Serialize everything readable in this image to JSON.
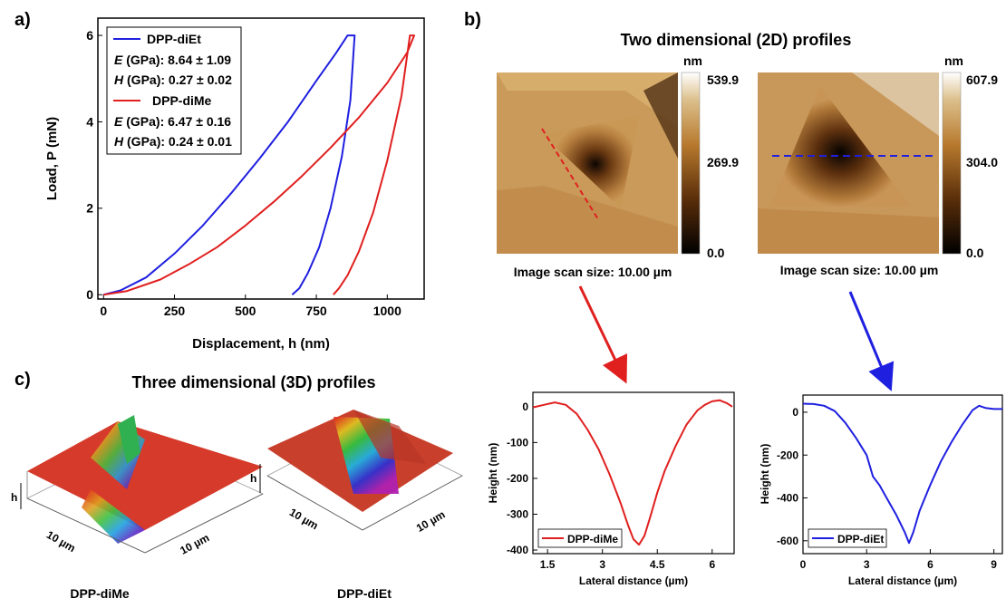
{
  "panels": {
    "a": {
      "letter": "a)"
    },
    "b": {
      "letter": "b)",
      "title": "Two dimensional (2D) profiles",
      "left_image": {
        "colorbar_unit": "nm",
        "colorbar_ticks": [
          "539.9",
          "269.9",
          "0.0"
        ],
        "scan_label": "Image scan size: 10.00 µm"
      },
      "right_image": {
        "colorbar_unit": "nm",
        "colorbar_ticks": [
          "607.9",
          "304.0",
          "0.0"
        ],
        "scan_label": "Image scan size: 10.00 µm"
      }
    },
    "c": {
      "letter": "c)",
      "title": "Three dimensional (3D) profiles",
      "left_3d": {
        "name": "DPP-diMe",
        "h": "h",
        "axis1": "10 µm",
        "axis2": "10 µm"
      },
      "right_3d": {
        "name": "DPP-diEt",
        "h": "h",
        "axis1": "10 µm",
        "axis2": "10 µm"
      }
    }
  },
  "legend_a": {
    "diEt": {
      "name": "DPP-diEt",
      "e_sym": "E",
      "e_text": " (GPa): 8.64 ± 1.09",
      "h_sym": "H",
      "h_text": " (GPa): 0.27 ± 0.02"
    },
    "diMe": {
      "name": "DPP-diMe",
      "e_sym": "E",
      "e_text": " (GPa): 6.47 ± 0.16",
      "h_sym": "H",
      "h_text": " (GPa): 0.24 ± 0.01"
    }
  },
  "colors": {
    "diEt": "#1f1fe0",
    "diMe": "#e01f1f"
  },
  "chart_data": [
    {
      "id": "load-displacement",
      "type": "line",
      "ylabel": "Load, P (mN)",
      "xlabel": "Displacement, h (nm)",
      "xlim": [
        -20,
        1130
      ],
      "ylim": [
        -0.1,
        6.4
      ],
      "xticks": [
        0,
        250,
        500,
        750,
        1000
      ],
      "yticks": [
        0,
        2,
        4,
        6
      ],
      "series": [
        {
          "name": "DPP-diEt",
          "color": "#1f1fe0",
          "x": [
            0,
            60,
            150,
            250,
            350,
            450,
            550,
            650,
            750,
            820,
            860,
            885,
            870,
            840,
            800,
            760,
            720,
            690,
            665
          ],
          "y": [
            0,
            0.1,
            0.4,
            0.95,
            1.6,
            2.35,
            3.15,
            4.0,
            4.95,
            5.6,
            6.0,
            6.0,
            4.5,
            3.2,
            2.0,
            1.1,
            0.5,
            0.15,
            0
          ]
        },
        {
          "name": "DPP-diMe",
          "color": "#e01f1f",
          "x": [
            0,
            80,
            200,
            300,
            400,
            500,
            600,
            700,
            800,
            900,
            1000,
            1070,
            1095,
            1080,
            1050,
            1000,
            950,
            900,
            860,
            830,
            810
          ],
          "y": [
            0,
            0.08,
            0.35,
            0.7,
            1.1,
            1.6,
            2.15,
            2.75,
            3.4,
            4.1,
            4.9,
            5.6,
            6.0,
            6.0,
            4.6,
            3.1,
            1.9,
            1.0,
            0.45,
            0.15,
            0
          ]
        }
      ]
    },
    {
      "id": "height-diMe",
      "type": "line",
      "ylabel": "Height (nm)",
      "xlabel": "Lateral distance (µm)",
      "xlim": [
        1.1,
        6.6
      ],
      "ylim": [
        -410,
        40
      ],
      "xticks": [
        1.5,
        3.0,
        4.5,
        6.0
      ],
      "yticks": [
        0,
        -100,
        -200,
        -300,
        -400
      ],
      "series": [
        {
          "name": "DPP-diMe",
          "color": "#e01f1f",
          "x": [
            1.1,
            1.4,
            1.7,
            2.0,
            2.3,
            2.6,
            2.9,
            3.2,
            3.5,
            3.7,
            3.85,
            4.0,
            4.15,
            4.3,
            4.5,
            4.7,
            5.0,
            5.3,
            5.6,
            5.8,
            6.0,
            6.2,
            6.4,
            6.55
          ],
          "y": [
            -2,
            5,
            12,
            5,
            -20,
            -65,
            -120,
            -190,
            -270,
            -330,
            -370,
            -385,
            -360,
            -310,
            -240,
            -180,
            -110,
            -50,
            -10,
            5,
            15,
            18,
            10,
            0
          ]
        }
      ]
    },
    {
      "id": "height-diEt",
      "type": "line",
      "ylabel": "Height (nm)",
      "xlabel": "Lateral distance (µm)",
      "xlim": [
        0,
        9.4
      ],
      "ylim": [
        -660,
        80
      ],
      "xticks": [
        0,
        3,
        6,
        9
      ],
      "yticks": [
        0,
        -200,
        -400,
        -600
      ],
      "series": [
        {
          "name": "DPP-diEt",
          "color": "#1f1fe0",
          "x": [
            0,
            0.5,
            1.0,
            1.5,
            2.0,
            2.5,
            3.0,
            3.3,
            3.6,
            4.0,
            4.4,
            4.8,
            5.0,
            5.2,
            5.5,
            6.0,
            6.5,
            7.0,
            7.5,
            8.0,
            8.3,
            8.6,
            9.0,
            9.4
          ],
          "y": [
            40,
            38,
            30,
            5,
            -50,
            -120,
            -200,
            -300,
            -340,
            -410,
            -480,
            -560,
            -610,
            -560,
            -460,
            -340,
            -230,
            -140,
            -60,
            10,
            30,
            20,
            15,
            15
          ]
        }
      ]
    }
  ]
}
